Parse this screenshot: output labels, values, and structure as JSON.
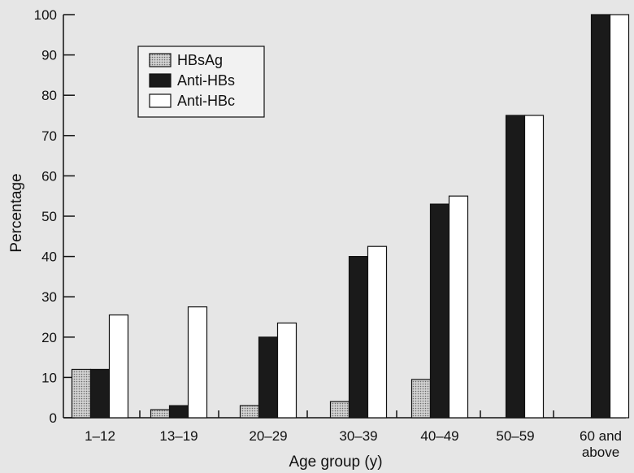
{
  "chart_data": {
    "type": "bar",
    "title": "",
    "xlabel": "Age group (y)",
    "ylabel": "Percentage",
    "ylim": [
      0,
      100
    ],
    "yticks": [
      0,
      10,
      20,
      30,
      40,
      50,
      60,
      70,
      80,
      90,
      100
    ],
    "categories": [
      "1–12",
      "13–19",
      "20–29",
      "30–39",
      "40–49",
      "50–59",
      "60 and above"
    ],
    "series": [
      {
        "name": "HBsAg",
        "values": [
          12,
          2,
          3,
          4,
          9.5,
          null,
          null
        ],
        "fill": "#c8c8c8",
        "pattern": "dotted"
      },
      {
        "name": "Anti-HBs",
        "values": [
          12,
          3,
          20,
          40,
          53,
          75,
          100
        ],
        "fill": "#1a1a1a"
      },
      {
        "name": "Anti-HBc",
        "values": [
          25.5,
          27.5,
          23.5,
          42.5,
          55,
          75,
          100
        ],
        "fill": "#ffffff"
      }
    ],
    "grid": false,
    "legend_position": "top-left"
  },
  "colors": {
    "background": "#e6e6e6",
    "axis": "#111111"
  }
}
